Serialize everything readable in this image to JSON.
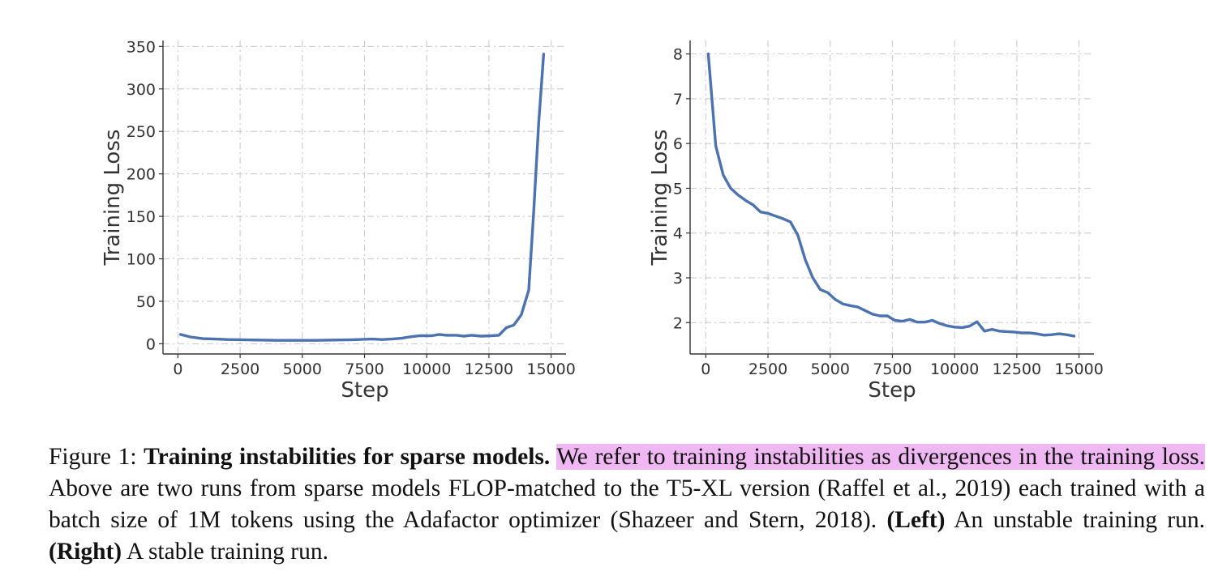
{
  "colors": {
    "series": "#4c72b0",
    "highlight": "#f0b8f3"
  },
  "chart_data": [
    {
      "type": "line",
      "title": "",
      "xlabel": "Step",
      "ylabel": "Training Loss",
      "xlim": [
        -600,
        15600
      ],
      "ylim": [
        -12,
        357
      ],
      "xticks": [
        0,
        2500,
        5000,
        7500,
        10000,
        12500,
        15000
      ],
      "yticks": [
        0,
        50,
        100,
        150,
        200,
        250,
        300,
        350
      ],
      "grid": true,
      "series": [
        {
          "x": [
            100,
            500,
            1000,
            1500,
            2000,
            3000,
            4000,
            5000,
            5500,
            6000,
            7000,
            7800,
            8200,
            8600,
            9000,
            9300,
            9700,
            10200,
            10500,
            10800,
            11200,
            11500,
            11800,
            12200,
            12600,
            12900,
            13200,
            13500,
            13800,
            14100,
            14300,
            14500,
            14700
          ],
          "y": [
            11,
            8,
            6,
            5.5,
            5,
            4.5,
            4,
            4,
            4,
            4.3,
            4.8,
            5.5,
            5,
            5.5,
            6.5,
            8,
            9.5,
            9.5,
            11,
            10,
            10,
            9,
            10,
            9,
            9.5,
            10,
            19,
            22,
            34,
            63,
            155,
            260,
            341
          ]
        }
      ]
    },
    {
      "type": "line",
      "title": "",
      "xlabel": "Step",
      "ylabel": "Training Loss",
      "xlim": [
        -630,
        15600
      ],
      "ylim": [
        1.3,
        8.3
      ],
      "xticks": [
        0,
        2500,
        5000,
        7500,
        10000,
        12500,
        15000
      ],
      "yticks": [
        2,
        3,
        4,
        5,
        6,
        7,
        8
      ],
      "grid": true,
      "series": [
        {
          "x": [
            100,
            400,
            700,
            1000,
            1300,
            1600,
            1900,
            2200,
            2500,
            2800,
            3100,
            3400,
            3700,
            4000,
            4300,
            4600,
            4900,
            5200,
            5500,
            5800,
            6100,
            6400,
            6700,
            7000,
            7300,
            7600,
            7900,
            8200,
            8500,
            8800,
            9100,
            9400,
            9700,
            10000,
            10300,
            10600,
            10900,
            11200,
            11500,
            11800,
            12100,
            12400,
            12700,
            13000,
            13300,
            13600,
            13900,
            14200,
            14500,
            14800
          ],
          "y": [
            8.0,
            5.95,
            5.3,
            5.0,
            4.85,
            4.73,
            4.63,
            4.47,
            4.44,
            4.38,
            4.32,
            4.25,
            3.95,
            3.4,
            3.0,
            2.74,
            2.67,
            2.52,
            2.42,
            2.38,
            2.35,
            2.27,
            2.19,
            2.15,
            2.15,
            2.05,
            2.03,
            2.07,
            2.01,
            2.01,
            2.05,
            1.98,
            1.93,
            1.9,
            1.89,
            1.92,
            2.02,
            1.81,
            1.85,
            1.81,
            1.8,
            1.79,
            1.77,
            1.77,
            1.75,
            1.72,
            1.73,
            1.75,
            1.73,
            1.7
          ]
        }
      ]
    }
  ],
  "caption": {
    "figure_label": "Figure 1:",
    "bold_title": "Training instabilities for sparse models.",
    "highlight": "We refer to training instabilities as divergences in the training loss.",
    "body": "Above are two runs from sparse models FLOP-matched to the T5-XL version (Raffel et al., 2019) each trained with a batch size of 1M tokens using the Adafactor optimizer (Shazeer and Stern, 2018).",
    "left_label": "(Left)",
    "left_text": "An unstable training run.",
    "right_label": "(Right)",
    "right_text": "A stable training run."
  }
}
